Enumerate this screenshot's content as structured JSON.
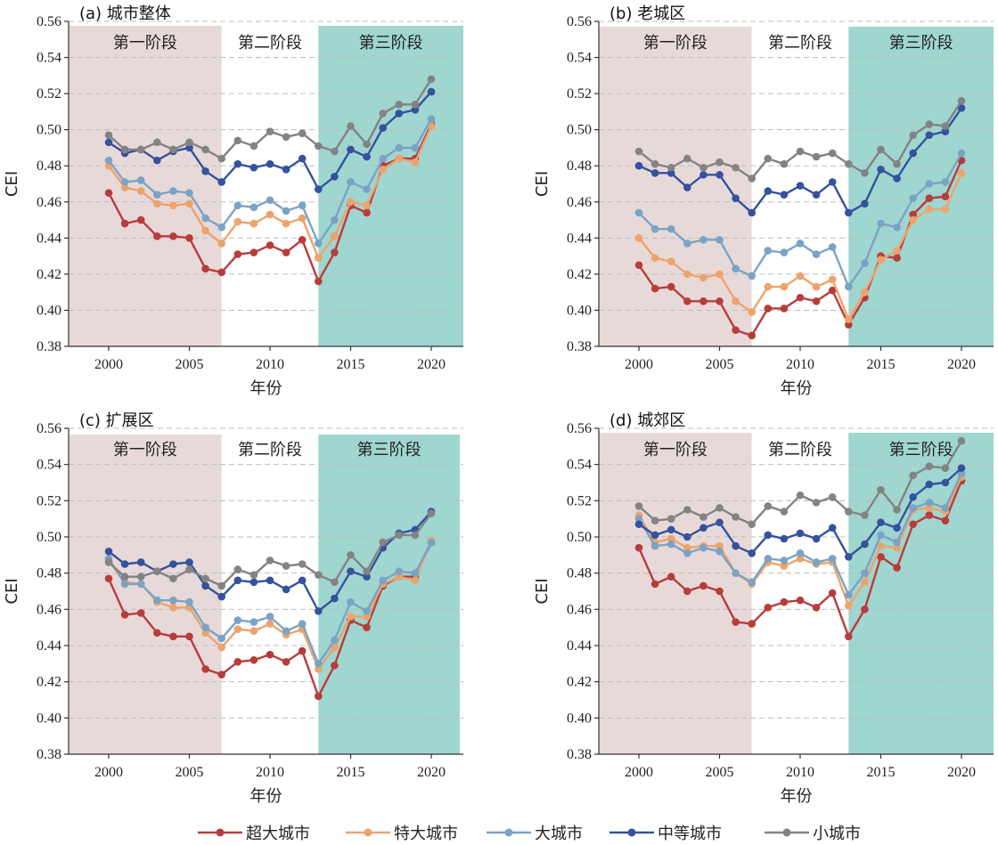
{
  "chart_data": [
    {
      "type": "line",
      "title": "(a) 城市整体",
      "xlabel": "年份",
      "ylabel": "CEI",
      "xlim": [
        1998,
        2022
      ],
      "ylim": [
        0.38,
        0.56
      ],
      "xticks": [
        2000,
        2005,
        2010,
        2015,
        2020
      ],
      "yticks": [
        0.38,
        0.4,
        0.42,
        0.44,
        0.46,
        0.48,
        0.5,
        0.52,
        0.54,
        0.56
      ],
      "grid": "horizontal dashed",
      "stages": [
        {
          "label": "第一阶段",
          "from": 1998,
          "to": 2007,
          "color": "#e8d9d9"
        },
        {
          "label": "第二阶段",
          "from": 2007,
          "to": 2013,
          "color": "#ffffff"
        },
        {
          "label": "第三阶段",
          "from": 2013,
          "to": 2022,
          "color": "#9fd6d0"
        }
      ],
      "x": [
        2000,
        2001,
        2002,
        2003,
        2004,
        2005,
        2006,
        2007,
        2008,
        2009,
        2010,
        2011,
        2012,
        2013,
        2014,
        2015,
        2016,
        2017,
        2018,
        2019,
        2020
      ],
      "series": [
        {
          "name": "超大城市",
          "color": "#b83c3c",
          "values": [
            0.465,
            0.448,
            0.45,
            0.441,
            0.441,
            0.44,
            0.423,
            0.421,
            0.431,
            0.432,
            0.436,
            0.432,
            0.439,
            0.416,
            0.432,
            0.458,
            0.454,
            0.48,
            0.484,
            0.484,
            0.503
          ]
        },
        {
          "name": "特大城市",
          "color": "#eda36b",
          "values": [
            0.48,
            0.468,
            0.466,
            0.459,
            0.458,
            0.459,
            0.444,
            0.437,
            0.449,
            0.448,
            0.453,
            0.448,
            0.451,
            0.429,
            0.441,
            0.46,
            0.458,
            0.478,
            0.484,
            0.482,
            0.502
          ]
        },
        {
          "name": "大城市",
          "color": "#7aa3c6",
          "values": [
            0.483,
            0.471,
            0.472,
            0.464,
            0.466,
            0.465,
            0.451,
            0.446,
            0.458,
            0.457,
            0.461,
            0.455,
            0.458,
            0.437,
            0.45,
            0.471,
            0.467,
            0.484,
            0.49,
            0.49,
            0.506
          ]
        },
        {
          "name": "中等城市",
          "color": "#34529e",
          "values": [
            0.493,
            0.487,
            0.489,
            0.483,
            0.488,
            0.49,
            0.477,
            0.471,
            0.481,
            0.479,
            0.481,
            0.478,
            0.484,
            0.467,
            0.474,
            0.489,
            0.485,
            0.501,
            0.509,
            0.511,
            0.521
          ]
        },
        {
          "name": "小城市",
          "color": "#838383",
          "values": [
            0.497,
            0.489,
            0.489,
            0.493,
            0.489,
            0.493,
            0.489,
            0.484,
            0.494,
            0.491,
            0.499,
            0.496,
            0.498,
            0.491,
            0.488,
            0.502,
            0.492,
            0.509,
            0.514,
            0.514,
            0.528
          ]
        }
      ]
    },
    {
      "type": "line",
      "title": "(b) 老城区",
      "xlabel": "年份",
      "ylabel": "CEI",
      "xlim": [
        1998,
        2022
      ],
      "ylim": [
        0.38,
        0.56
      ],
      "xticks": [
        2000,
        2005,
        2010,
        2015,
        2020
      ],
      "yticks": [
        0.38,
        0.4,
        0.42,
        0.44,
        0.46,
        0.48,
        0.5,
        0.52,
        0.54,
        0.56
      ],
      "grid": "horizontal dashed",
      "stages": [
        {
          "label": "第一阶段",
          "from": 1998,
          "to": 2007,
          "color": "#e8d9d9"
        },
        {
          "label": "第二阶段",
          "from": 2007,
          "to": 2013,
          "color": "#ffffff"
        },
        {
          "label": "第三阶段",
          "from": 2013,
          "to": 2022,
          "color": "#9fd6d0"
        }
      ],
      "x": [
        2000,
        2001,
        2002,
        2003,
        2004,
        2005,
        2006,
        2007,
        2008,
        2009,
        2010,
        2011,
        2012,
        2013,
        2014,
        2015,
        2016,
        2017,
        2018,
        2019,
        2020
      ],
      "series": [
        {
          "name": "超大城市",
          "color": "#b83c3c",
          "values": [
            0.425,
            0.412,
            0.413,
            0.405,
            0.405,
            0.405,
            0.389,
            0.386,
            0.401,
            0.401,
            0.407,
            0.405,
            0.411,
            0.392,
            0.407,
            0.43,
            0.429,
            0.453,
            0.462,
            0.463,
            0.483
          ]
        },
        {
          "name": "特大城市",
          "color": "#eda36b",
          "values": [
            0.44,
            0.429,
            0.427,
            0.42,
            0.418,
            0.42,
            0.405,
            0.399,
            0.413,
            0.413,
            0.419,
            0.413,
            0.417,
            0.395,
            0.41,
            0.428,
            0.433,
            0.45,
            0.456,
            0.456,
            0.476
          ]
        },
        {
          "name": "大城市",
          "color": "#7aa3c6",
          "values": [
            0.454,
            0.445,
            0.445,
            0.437,
            0.439,
            0.439,
            0.423,
            0.419,
            0.433,
            0.432,
            0.437,
            0.431,
            0.435,
            0.413,
            0.426,
            0.448,
            0.446,
            0.462,
            0.47,
            0.471,
            0.487
          ]
        },
        {
          "name": "中等城市",
          "color": "#34529e",
          "values": [
            0.48,
            0.476,
            0.476,
            0.468,
            0.475,
            0.475,
            0.462,
            0.454,
            0.466,
            0.464,
            0.469,
            0.464,
            0.471,
            0.454,
            0.459,
            0.478,
            0.473,
            0.487,
            0.497,
            0.499,
            0.512
          ]
        },
        {
          "name": "小城市",
          "color": "#838383",
          "values": [
            0.488,
            0.481,
            0.479,
            0.484,
            0.479,
            0.482,
            0.479,
            0.473,
            0.484,
            0.481,
            0.488,
            0.485,
            0.487,
            0.481,
            0.476,
            0.489,
            0.481,
            0.497,
            0.503,
            0.502,
            0.516
          ]
        }
      ]
    },
    {
      "type": "line",
      "title": "(c) 扩展区",
      "xlabel": "年份",
      "ylabel": "CEI",
      "xlim": [
        1998,
        2022
      ],
      "ylim": [
        0.38,
        0.56
      ],
      "xticks": [
        2000,
        2005,
        2010,
        2015,
        2020
      ],
      "yticks": [
        0.38,
        0.4,
        0.42,
        0.44,
        0.46,
        0.48,
        0.5,
        0.52,
        0.54,
        0.56
      ],
      "grid": "horizontal dashed",
      "stages": [
        {
          "label": "第一阶段",
          "from": 1998,
          "to": 2007,
          "color": "#e8d9d9"
        },
        {
          "label": "第二阶段",
          "from": 2007,
          "to": 2013,
          "color": "#ffffff"
        },
        {
          "label": "第三阶段",
          "from": 2013,
          "to": 2022,
          "color": "#9fd6d0"
        }
      ],
      "x": [
        2000,
        2001,
        2002,
        2003,
        2004,
        2005,
        2006,
        2007,
        2008,
        2009,
        2010,
        2011,
        2012,
        2013,
        2014,
        2015,
        2016,
        2017,
        2018,
        2019,
        2020
      ],
      "series": [
        {
          "name": "超大城市",
          "color": "#b83c3c",
          "values": [
            0.477,
            0.457,
            0.458,
            0.447,
            0.445,
            0.445,
            0.427,
            0.424,
            0.431,
            0.432,
            0.435,
            0.431,
            0.437,
            0.412,
            0.429,
            0.454,
            0.45,
            0.473,
            0.478,
            0.478,
            0.497
          ]
        },
        {
          "name": "特大城市",
          "color": "#eda36b",
          "values": [
            0.487,
            0.475,
            0.474,
            0.464,
            0.461,
            0.461,
            0.447,
            0.439,
            0.449,
            0.448,
            0.452,
            0.446,
            0.449,
            0.427,
            0.439,
            0.456,
            0.456,
            0.474,
            0.478,
            0.476,
            0.498
          ]
        },
        {
          "name": "大城市",
          "color": "#7aa3c6",
          "values": [
            0.488,
            0.474,
            0.474,
            0.465,
            0.465,
            0.464,
            0.45,
            0.444,
            0.454,
            0.453,
            0.456,
            0.448,
            0.452,
            0.43,
            0.443,
            0.464,
            0.459,
            0.476,
            0.481,
            0.48,
            0.497
          ]
        },
        {
          "name": "中等城市",
          "color": "#34529e",
          "values": [
            0.492,
            0.485,
            0.486,
            0.481,
            0.485,
            0.486,
            0.473,
            0.467,
            0.476,
            0.475,
            0.476,
            0.471,
            0.476,
            0.459,
            0.466,
            0.481,
            0.478,
            0.494,
            0.502,
            0.504,
            0.514
          ]
        },
        {
          "name": "小城市",
          "color": "#838383",
          "values": [
            0.486,
            0.478,
            0.478,
            0.481,
            0.477,
            0.482,
            0.477,
            0.473,
            0.482,
            0.479,
            0.487,
            0.484,
            0.485,
            0.479,
            0.475,
            0.49,
            0.481,
            0.497,
            0.501,
            0.501,
            0.513
          ]
        }
      ]
    },
    {
      "type": "line",
      "title": "(d) 城郊区",
      "xlabel": "年份",
      "ylabel": "CEI",
      "xlim": [
        1998,
        2022
      ],
      "ylim": [
        0.38,
        0.56
      ],
      "xticks": [
        2000,
        2005,
        2010,
        2015,
        2020
      ],
      "yticks": [
        0.38,
        0.4,
        0.42,
        0.44,
        0.46,
        0.48,
        0.5,
        0.52,
        0.54,
        0.56
      ],
      "grid": "horizontal dashed",
      "stages": [
        {
          "label": "第一阶段",
          "from": 1998,
          "to": 2007,
          "color": "#e8d9d9"
        },
        {
          "label": "第二阶段",
          "from": 2007,
          "to": 2013,
          "color": "#ffffff"
        },
        {
          "label": "第三阶段",
          "from": 2013,
          "to": 2022,
          "color": "#9fd6d0"
        }
      ],
      "x": [
        2000,
        2001,
        2002,
        2003,
        2004,
        2005,
        2006,
        2007,
        2008,
        2009,
        2010,
        2011,
        2012,
        2013,
        2014,
        2015,
        2016,
        2017,
        2018,
        2019,
        2020
      ],
      "series": [
        {
          "name": "超大城市",
          "color": "#b83c3c",
          "values": [
            0.494,
            0.474,
            0.478,
            0.47,
            0.473,
            0.47,
            0.453,
            0.452,
            0.461,
            0.464,
            0.465,
            0.461,
            0.469,
            0.445,
            0.46,
            0.489,
            0.483,
            0.507,
            0.512,
            0.509,
            0.531
          ]
        },
        {
          "name": "特大城市",
          "color": "#eda36b",
          "values": [
            0.512,
            0.497,
            0.499,
            0.494,
            0.495,
            0.495,
            0.48,
            0.474,
            0.486,
            0.484,
            0.488,
            0.485,
            0.486,
            0.462,
            0.475,
            0.495,
            0.494,
            0.515,
            0.516,
            0.514,
            0.533
          ]
        },
        {
          "name": "大城市",
          "color": "#7aa3c6",
          "values": [
            0.51,
            0.495,
            0.496,
            0.491,
            0.494,
            0.492,
            0.48,
            0.475,
            0.488,
            0.487,
            0.491,
            0.486,
            0.488,
            0.468,
            0.48,
            0.501,
            0.497,
            0.516,
            0.519,
            0.516,
            0.535
          ]
        },
        {
          "name": "中等城市",
          "color": "#34529e",
          "values": [
            0.507,
            0.501,
            0.504,
            0.5,
            0.505,
            0.508,
            0.495,
            0.491,
            0.501,
            0.499,
            0.502,
            0.499,
            0.505,
            0.489,
            0.496,
            0.508,
            0.505,
            0.522,
            0.529,
            0.53,
            0.538
          ]
        },
        {
          "name": "小城市",
          "color": "#838383",
          "values": [
            0.517,
            0.509,
            0.51,
            0.515,
            0.511,
            0.516,
            0.511,
            0.507,
            0.517,
            0.514,
            0.523,
            0.519,
            0.522,
            0.514,
            0.512,
            0.526,
            0.515,
            0.534,
            0.539,
            0.538,
            0.553
          ]
        }
      ]
    }
  ]
}
